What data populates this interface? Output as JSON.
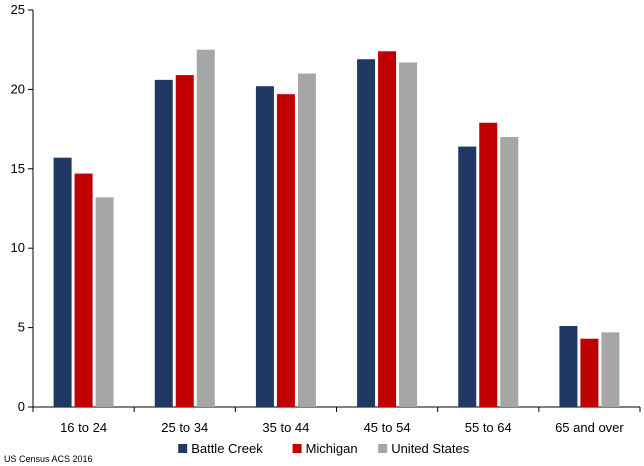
{
  "chart_data": {
    "type": "bar",
    "categories": [
      "16 to 24",
      "25 to 34",
      "35 to 44",
      "45 to 54",
      "55 to 64",
      "65 and over"
    ],
    "series": [
      {
        "name": "Battle Creek",
        "color": "#1f3864",
        "values": [
          15.7,
          20.6,
          20.2,
          21.9,
          16.4,
          5.1
        ]
      },
      {
        "name": "Michigan",
        "color": "#c00000",
        "values": [
          14.7,
          20.9,
          19.7,
          22.4,
          17.9,
          4.3
        ]
      },
      {
        "name": "United States",
        "color": "#a6a6a6",
        "values": [
          13.2,
          22.5,
          21.0,
          21.7,
          17.0,
          4.7
        ]
      }
    ],
    "ylim": [
      0,
      25
    ],
    "yticks": [
      "0",
      "5",
      "10",
      "15",
      "20",
      "25"
    ],
    "grid": false,
    "legend": "bottom"
  },
  "source_note": "US Census ACS 2016"
}
